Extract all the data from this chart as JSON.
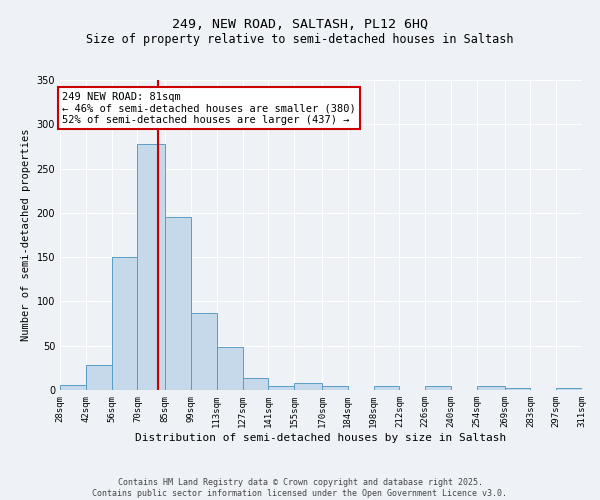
{
  "title": "249, NEW ROAD, SALTASH, PL12 6HQ",
  "subtitle": "Size of property relative to semi-detached houses in Saltash",
  "xlabel": "Distribution of semi-detached houses by size in Saltash",
  "ylabel": "Number of semi-detached properties",
  "bin_edges": [
    28,
    42,
    56,
    70,
    85,
    99,
    113,
    127,
    141,
    155,
    170,
    184,
    198,
    212,
    226,
    240,
    254,
    269,
    283,
    297,
    311
  ],
  "bar_heights": [
    6,
    28,
    150,
    278,
    195,
    87,
    48,
    13,
    5,
    8,
    5,
    0,
    5,
    0,
    5,
    0,
    5,
    2,
    0,
    2
  ],
  "bar_color": "#c6d9ea",
  "bar_edge_color": "#5a9dc5",
  "property_size": 81,
  "vline_color": "#cc0000",
  "ylim": [
    0,
    350
  ],
  "yticks": [
    0,
    50,
    100,
    150,
    200,
    250,
    300,
    350
  ],
  "annotation_text": "249 NEW ROAD: 81sqm\n← 46% of semi-detached houses are smaller (380)\n52% of semi-detached houses are larger (437) →",
  "annotation_box_facecolor": "#ffffff",
  "annotation_box_edgecolor": "#cc0000",
  "footer_text": "Contains HM Land Registry data © Crown copyright and database right 2025.\nContains public sector information licensed under the Open Government Licence v3.0.",
  "background_color": "#eef2f7",
  "grid_color": "#ffffff",
  "tick_labels": [
    "28sqm",
    "42sqm",
    "56sqm",
    "70sqm",
    "85sqm",
    "99sqm",
    "113sqm",
    "127sqm",
    "141sqm",
    "155sqm",
    "170sqm",
    "184sqm",
    "198sqm",
    "212sqm",
    "226sqm",
    "240sqm",
    "254sqm",
    "269sqm",
    "283sqm",
    "297sqm",
    "311sqm"
  ],
  "title_fontsize": 9.5,
  "subtitle_fontsize": 8.5,
  "xlabel_fontsize": 8,
  "ylabel_fontsize": 7.5,
  "tick_fontsize": 6.5,
  "annot_fontsize": 7.5,
  "footer_fontsize": 6
}
